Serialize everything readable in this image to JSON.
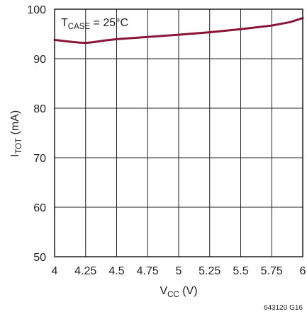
{
  "chart_data": {
    "type": "line",
    "title": "",
    "annotation": {
      "main": "T",
      "sub": "CASE",
      "rest": " = 25°C"
    },
    "xlabel": {
      "main": "V",
      "sub": "CC",
      "rest": " (V)"
    },
    "ylabel": {
      "main": "I",
      "sub": "TOT",
      "rest": " (mA)"
    },
    "xlim": [
      4,
      6
    ],
    "ylim": [
      50,
      100
    ],
    "xticks": [
      {
        "value": 4,
        "label": "4"
      },
      {
        "value": 4.25,
        "label": "4.25"
      },
      {
        "value": 4.5,
        "label": "4.5"
      },
      {
        "value": 4.75,
        "label": "4.75"
      },
      {
        "value": 5,
        "label": "5"
      },
      {
        "value": 5.25,
        "label": "5.25"
      },
      {
        "value": 5.5,
        "label": "5.5"
      },
      {
        "value": 5.75,
        "label": "5.75"
      },
      {
        "value": 6,
        "label": "6"
      }
    ],
    "yticks": [
      {
        "value": 50,
        "label": "50"
      },
      {
        "value": 60,
        "label": "60"
      },
      {
        "value": 70,
        "label": "70"
      },
      {
        "value": 80,
        "label": "80"
      },
      {
        "value": 90,
        "label": "90"
      },
      {
        "value": 100,
        "label": "100"
      }
    ],
    "grid": true,
    "series": [
      {
        "color": "#8b1538",
        "x": [
          4,
          4.1,
          4.2,
          4.25,
          4.3,
          4.4,
          4.5,
          4.75,
          5,
          5.25,
          5.5,
          5.75,
          5.9,
          6
        ],
        "y": [
          93.8,
          93.5,
          93.25,
          93.2,
          93.3,
          93.65,
          93.95,
          94.4,
          94.85,
          95.35,
          95.95,
          96.7,
          97.4,
          98.2
        ]
      }
    ],
    "figure_id": "643120 G16"
  }
}
